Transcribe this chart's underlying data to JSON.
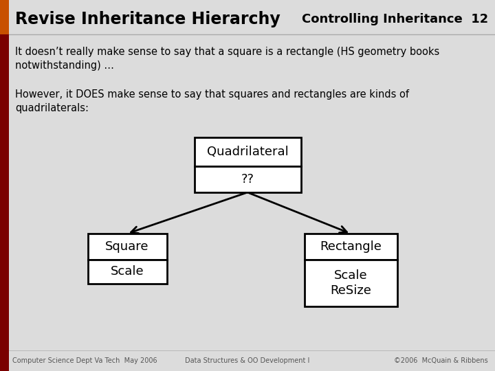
{
  "bg_color": "#dcdcdc",
  "content_bg": "#dcdcdc",
  "title_text": "Revise Inheritance Hierarchy",
  "header_right": "Controlling Inheritance  12",
  "orange_bar_color": "#c85000",
  "dark_red_bar_color": "#7a0000",
  "para1": "It doesn’t really make sense to say that a square is a rectangle (HS geometry books\nnotwithstanding) …",
  "para2": "However, it DOES make sense to say that squares and rectangles are kinds of\nquadrilaterals:",
  "footer_left": "Computer Science Dept Va Tech  May 2006",
  "footer_center": "Data Structures & OO Development I",
  "footer_right": "©2006  McQuain & Ribbens"
}
